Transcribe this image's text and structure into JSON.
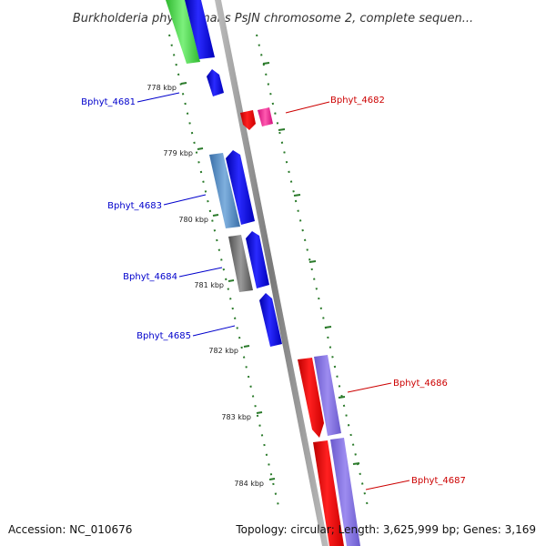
{
  "title": "Burkholderia phytofirmans PsJN chromosome 2, complete sequen...",
  "footer": {
    "accession": "Accession: NC_010676",
    "topology": "Topology: circular; Length: 3,625,999 bp; Genes: 3,169"
  },
  "ticks": [
    {
      "label": "778 kbp"
    },
    {
      "label": "779 kbp"
    },
    {
      "label": "780 kbp"
    },
    {
      "label": "781 kbp"
    },
    {
      "label": "782 kbp"
    },
    {
      "label": "783 kbp"
    },
    {
      "label": "784 kbp"
    }
  ],
  "gene_labels": [
    {
      "name": "Bphyt_4681",
      "color": "#0000cc"
    },
    {
      "name": "Bphyt_4682",
      "color": "#cc0000"
    },
    {
      "name": "Bphyt_4683",
      "color": "#0000cc"
    },
    {
      "name": "Bphyt_4684",
      "color": "#0000cc"
    },
    {
      "name": "Bphyt_4685",
      "color": "#0000cc"
    },
    {
      "name": "Bphyt_4686",
      "color": "#cc0000"
    },
    {
      "name": "Bphyt_4687",
      "color": "#cc0000"
    }
  ],
  "colors": {
    "forward_strand": "#0000ee",
    "reverse_strand": "#ff0000",
    "backbone": "#8c8c8c",
    "tick": "#2a7a2a"
  }
}
